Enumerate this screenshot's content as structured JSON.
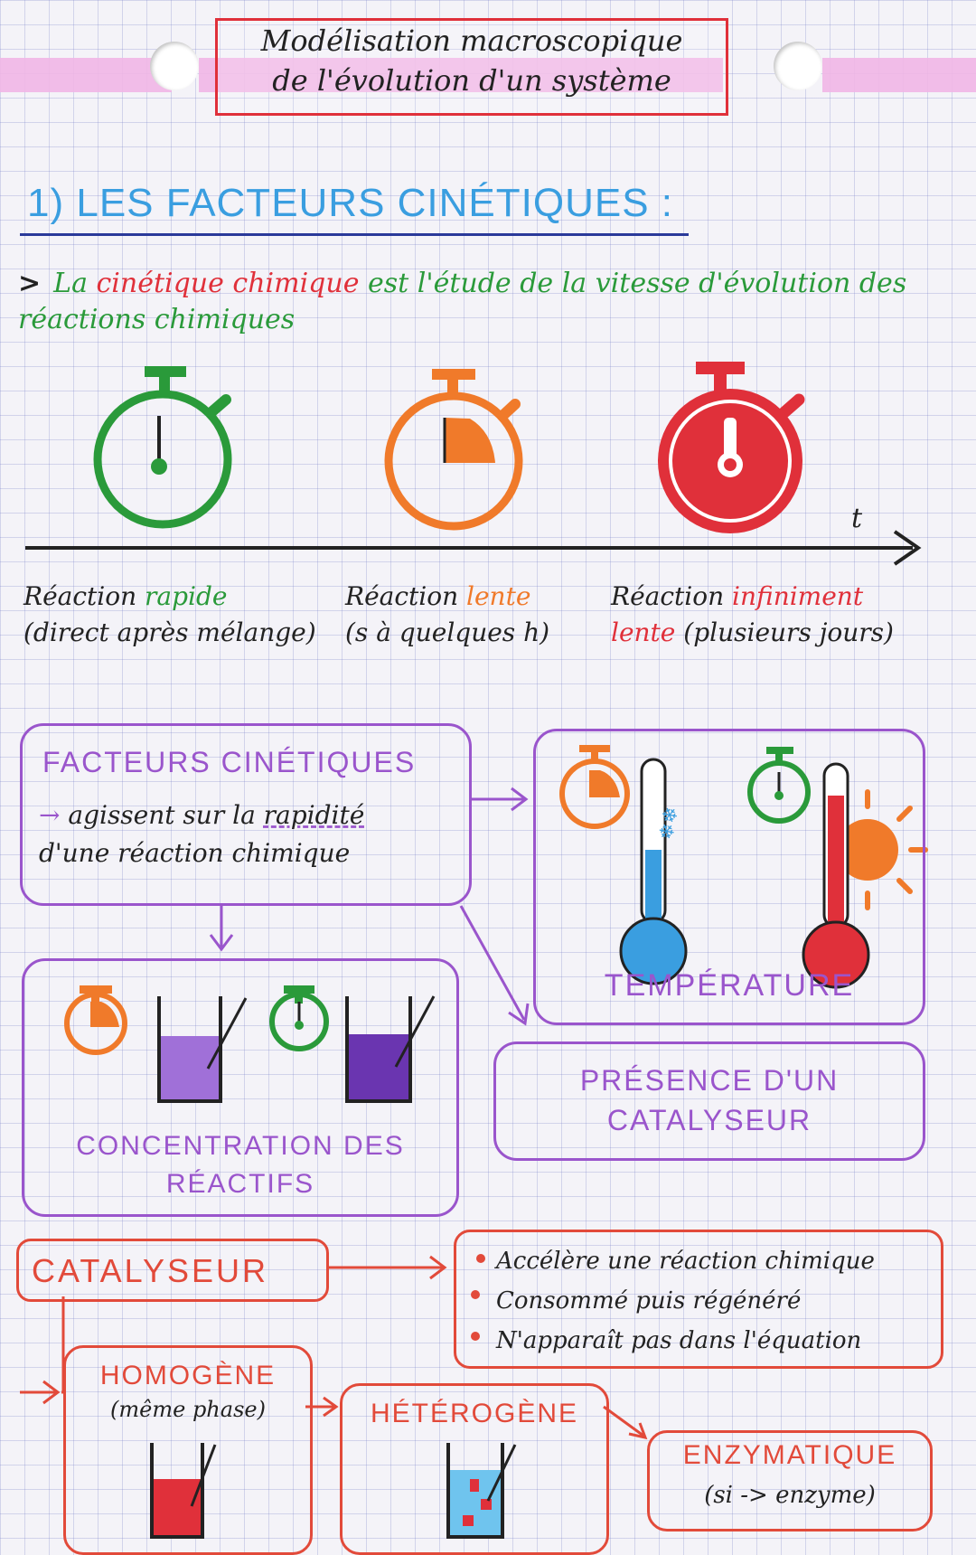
{
  "title": {
    "line1": "Modélisation macroscopique",
    "line2": "de l'évolution d'un système"
  },
  "section1": {
    "heading": "1) LES FACTEURS CINÉTIQUES :",
    "intro_arrow": ">",
    "intro_part1": "La ",
    "intro_term": "cinétique chimique",
    "intro_part2": " est l'étude de la vitesse d'évolution des réactions chimiques",
    "axis_label": "t"
  },
  "reactions": [
    {
      "prefix": "Réaction ",
      "word": "rapide",
      "detail": "(direct après mélange)"
    },
    {
      "prefix": "Réaction ",
      "word": "lente",
      "detail": "(s à quelques h)"
    },
    {
      "prefix": "Réaction ",
      "word": "infiniment",
      "word2": "lente",
      "detail": " (plusieurs jours)"
    }
  ],
  "factors": {
    "title": "FACTEURS CINÉTIQUES",
    "desc_arrow": "→",
    "desc_part1": " agissent sur la ",
    "desc_underlined": "rapidité",
    "desc_part2": "d'une réaction chimique",
    "temperature": "TEMPÉRATURE",
    "concentration_line1": "CONCENTRATION DES",
    "concentration_line2": "RÉACTIFS",
    "catalyst_line1": "PRÉSENCE D'UN",
    "catalyst_line2": "CATALYSEUR"
  },
  "catalyst": {
    "title": "CATALYSEUR",
    "bullets": [
      "Accélère une réaction chimique",
      "Consommé puis régénéré",
      "N'apparaît pas dans l'équation"
    ],
    "homogeneous": "HOMOGÈNE",
    "homogeneous_detail": "(même phase)",
    "heterogeneous": "HÉTÉROGÈNE",
    "enzymatic": "ENZYMATIQUE",
    "enzymatic_detail": "(si -> enzyme)"
  },
  "colors": {
    "green": "#2a9a3a",
    "orange": "#f07a2a",
    "red": "#e0303a",
    "purple": "#9a55cc",
    "blue": "#3a9ee0"
  }
}
